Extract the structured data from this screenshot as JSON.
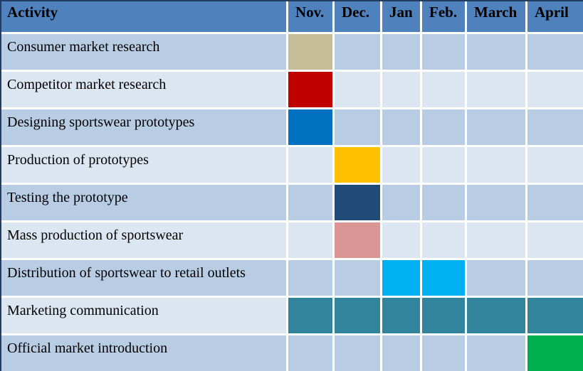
{
  "table": {
    "header": {
      "activity": "Activity",
      "months": [
        "Nov.",
        "Dec.",
        "Jan",
        "Feb.",
        "March",
        "April"
      ]
    },
    "rows": [
      {
        "activity": "Consumer market research",
        "bars": [
          {
            "start": 0,
            "span": 1,
            "color": "#c4bd97"
          }
        ]
      },
      {
        "activity": "Competitor market research",
        "bars": [
          {
            "start": 0,
            "span": 1,
            "color": "#c00000"
          }
        ]
      },
      {
        "activity": "Designing sportswear prototypes",
        "bars": [
          {
            "start": 0,
            "span": 1,
            "color": "#0070c0"
          }
        ]
      },
      {
        "activity": "Production of prototypes",
        "bars": [
          {
            "start": 1,
            "span": 1,
            "color": "#ffc000"
          }
        ]
      },
      {
        "activity": "Testing the prototype",
        "bars": [
          {
            "start": 1,
            "span": 1,
            "color": "#204a77"
          }
        ]
      },
      {
        "activity": "Mass production of sportswear",
        "bars": [
          {
            "start": 1,
            "span": 1,
            "color": "#d99694"
          }
        ]
      },
      {
        "activity": "Distribution of sportswear to retail outlets",
        "bars": [
          {
            "start": 2,
            "span": 2,
            "color": "#00b0f0"
          }
        ]
      },
      {
        "activity": "Marketing communication",
        "bars": [
          {
            "start": 0,
            "span": 6,
            "color": "#31849b"
          }
        ]
      },
      {
        "activity": "Official market introduction",
        "bars": [
          {
            "start": 5,
            "span": 1,
            "color": "#00b050"
          }
        ]
      }
    ]
  },
  "colors": {
    "header_bg": "#4f81bd",
    "row_stripe_dark": "#b8cce4",
    "row_stripe_light": "#dce6f1",
    "grid_gap": "#ffffff",
    "outer_rule": "#223c61",
    "text": "#000000"
  },
  "chart_data": {
    "type": "table",
    "subtype": "gantt",
    "title": "",
    "columns": [
      "Activity",
      "Nov.",
      "Dec.",
      "Jan",
      "Feb.",
      "March",
      "April"
    ],
    "tasks": [
      {
        "activity": "Consumer market research",
        "start": "Nov.",
        "end": "Nov.",
        "bar_color": "#c4bd97"
      },
      {
        "activity": "Competitor market research",
        "start": "Nov.",
        "end": "Nov.",
        "bar_color": "#c00000"
      },
      {
        "activity": "Designing sportswear prototypes",
        "start": "Nov.",
        "end": "Nov.",
        "bar_color": "#0070c0"
      },
      {
        "activity": "Production of prototypes",
        "start": "Dec.",
        "end": "Dec.",
        "bar_color": "#ffc000"
      },
      {
        "activity": "Testing the prototype",
        "start": "Dec.",
        "end": "Dec.",
        "bar_color": "#204a77"
      },
      {
        "activity": "Mass production of sportswear",
        "start": "Dec.",
        "end": "Dec.",
        "bar_color": "#d99694"
      },
      {
        "activity": "Distribution of sportswear to retail outlets",
        "start": "Jan",
        "end": "Feb.",
        "bar_color": "#00b0f0"
      },
      {
        "activity": "Marketing communication",
        "start": "Nov.",
        "end": "April",
        "bar_color": "#31849b"
      },
      {
        "activity": "Official market introduction",
        "start": "April",
        "end": "April",
        "bar_color": "#00b050"
      }
    ],
    "layout": {
      "grid": true,
      "row_striping": true,
      "legend": false
    }
  }
}
